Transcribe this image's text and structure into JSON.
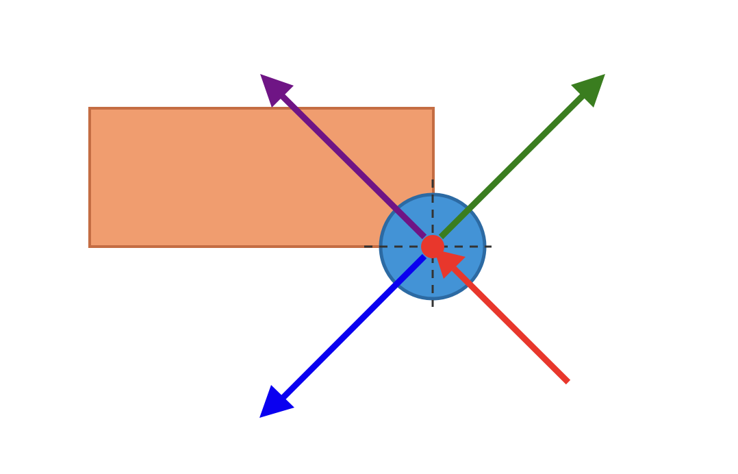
{
  "diagram": {
    "background": "#ffffff",
    "block": {
      "fill": "#f09d6f",
      "stroke": "#c46d43"
    },
    "body": {
      "fill": "#4393d6",
      "stroke": "#2c6aa3"
    },
    "center_point": {
      "fill": "#e8372c"
    },
    "crosshair": {
      "color": "#333333",
      "style": "dashed"
    },
    "arrows": [
      {
        "name": "purple-arrow",
        "color": "#6f1585",
        "direction": "outward"
      },
      {
        "name": "green-arrow",
        "color": "#3a7d1f",
        "direction": "outward"
      },
      {
        "name": "blue-arrow",
        "color": "#0a00f0",
        "direction": "outward"
      },
      {
        "name": "red-arrow",
        "color": "#e8372c",
        "direction": "inward"
      }
    ]
  }
}
